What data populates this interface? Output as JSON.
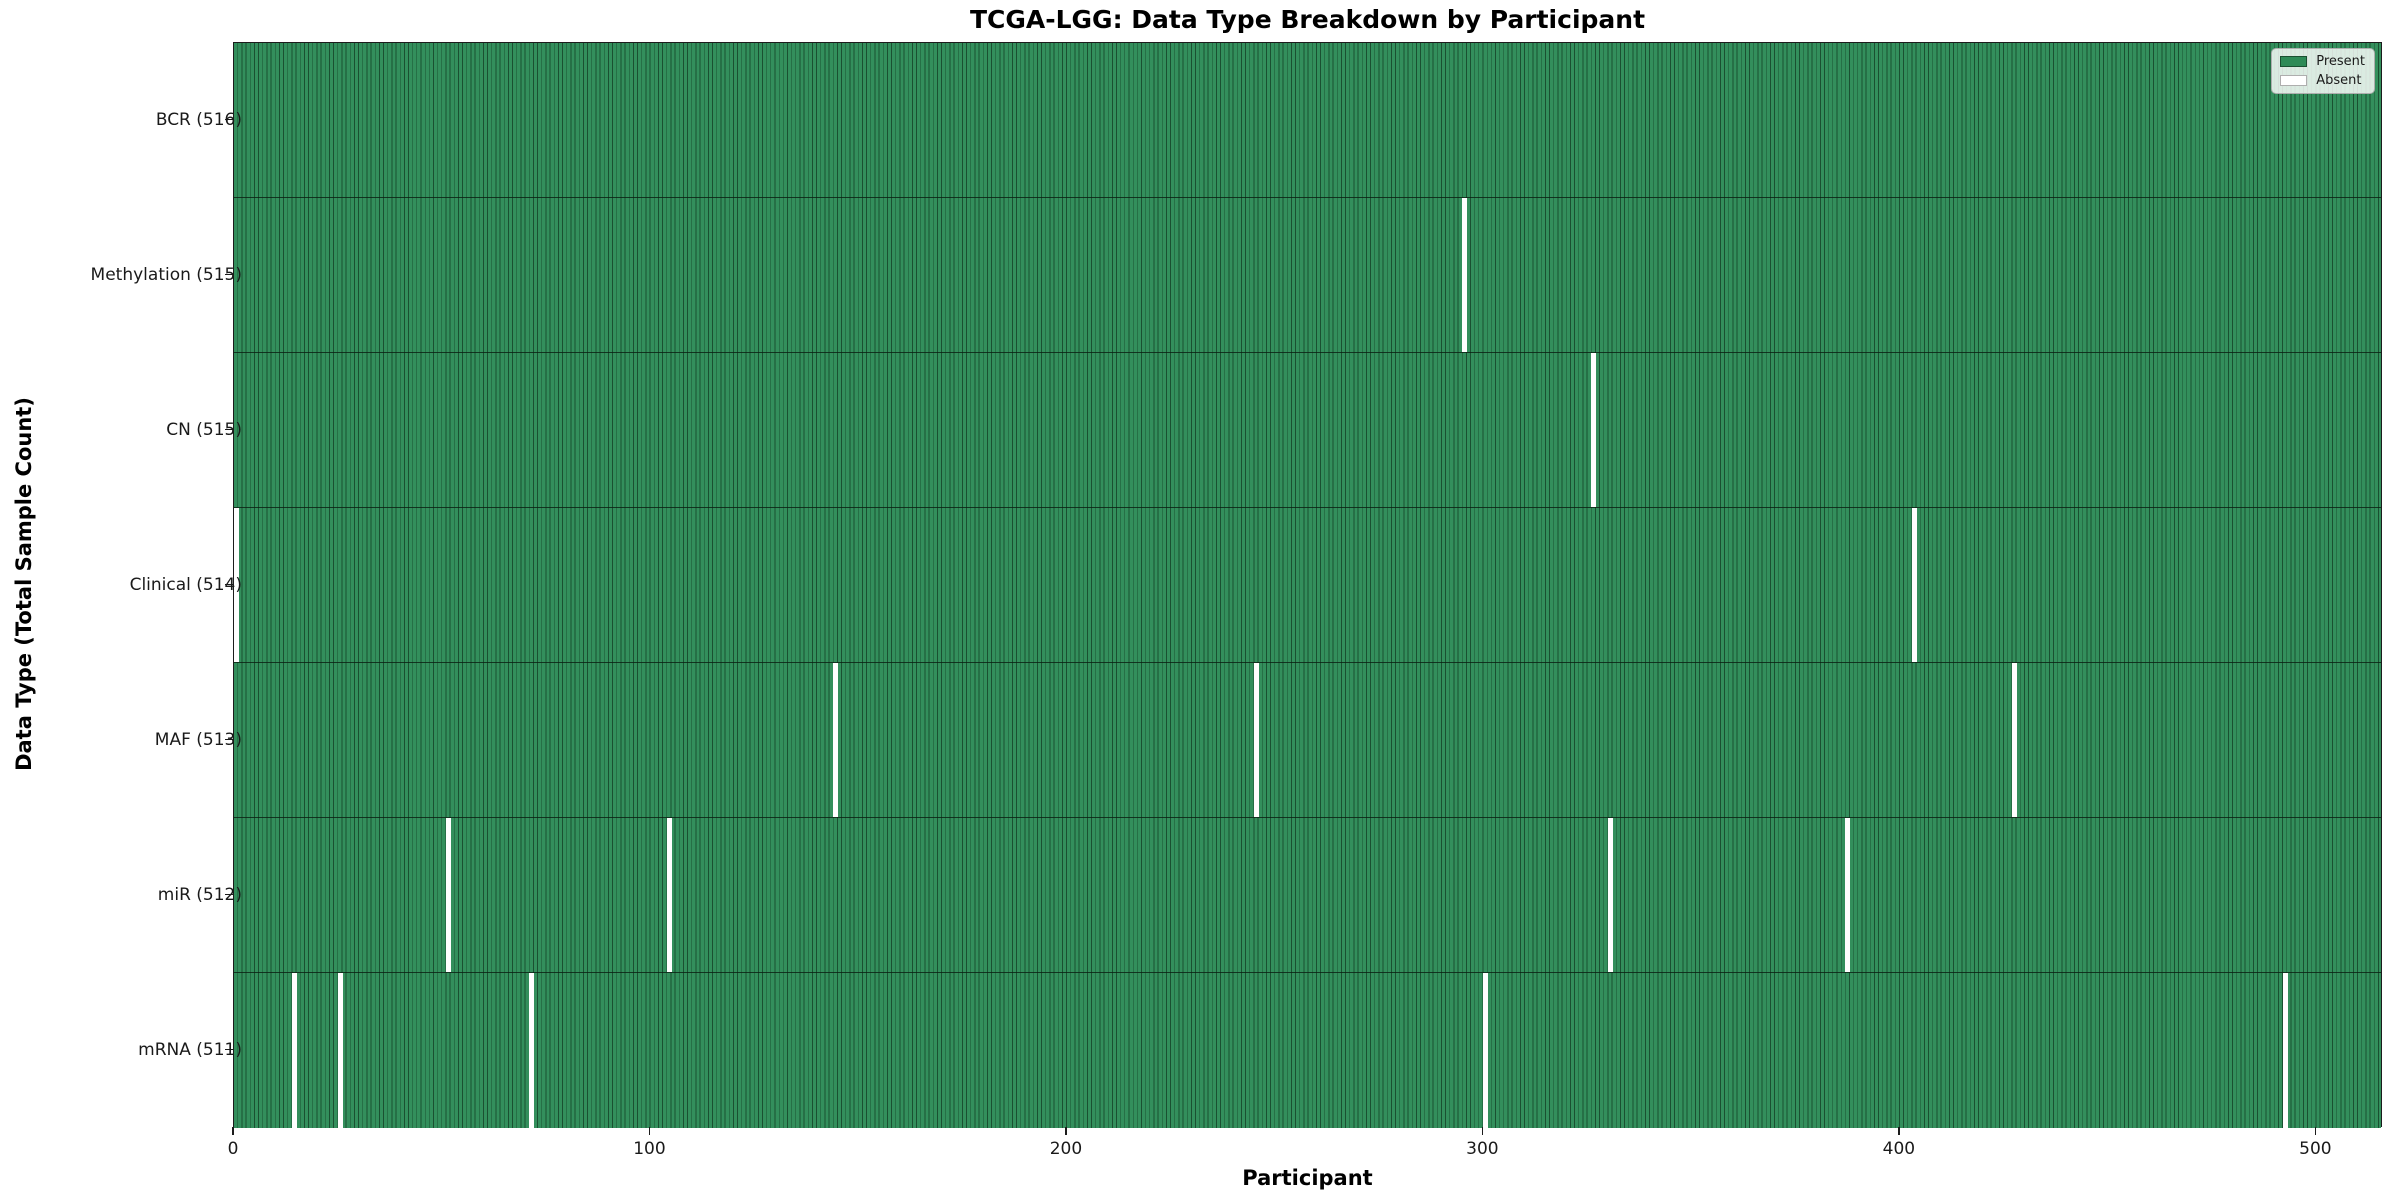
{
  "title": "TCGA-LGG: Data Type Breakdown by Participant",
  "axes": {
    "xlabel": "Participant",
    "ylabel": "Data Type (Total Sample Count)"
  },
  "legend": {
    "present_label": "Present",
    "absent_label": "Absent"
  },
  "colors": {
    "present_fill": "#2E8B57",
    "present_edge": "#1a5031",
    "absent_fill": "#FFFFFF",
    "absent_edge": "#aeaeae"
  },
  "chart_data": {
    "type": "heatmap",
    "title": "TCGA-LGG: Data Type Breakdown by Participant",
    "xlabel": "Participant",
    "ylabel": "Data Type (Total Sample Count)",
    "x_range": [
      0,
      516
    ],
    "x_ticks": [
      0,
      100,
      200,
      300,
      400,
      500
    ],
    "total_participants": 516,
    "grid": false,
    "legend_position": "upper right",
    "legend_entries": [
      {
        "label": "Present",
        "color": "#2E8B57"
      },
      {
        "label": "Absent",
        "color": "#FFFFFF"
      }
    ],
    "rows": [
      {
        "label": "BCR (516)",
        "data_type": "BCR",
        "present_count": 516,
        "absent_participants": []
      },
      {
        "label": "Methylation (515)",
        "data_type": "Methylation",
        "present_count": 515,
        "absent_participants": [
          295
        ]
      },
      {
        "label": "CN (515)",
        "data_type": "CN",
        "present_count": 515,
        "absent_participants": [
          326
        ]
      },
      {
        "label": "Clinical (514)",
        "data_type": "Clinical",
        "present_count": 514,
        "absent_participants": [
          0,
          403
        ]
      },
      {
        "label": "MAF (513)",
        "data_type": "MAF",
        "present_count": 513,
        "absent_participants": [
          144,
          245,
          427
        ]
      },
      {
        "label": "miR (512)",
        "data_type": "miR",
        "present_count": 512,
        "absent_participants": [
          51,
          104,
          330,
          387
        ]
      },
      {
        "label": "mRNA (511)",
        "data_type": "mRNA",
        "present_count": 511,
        "absent_participants": [
          14,
          25,
          71,
          300,
          492
        ]
      }
    ]
  }
}
